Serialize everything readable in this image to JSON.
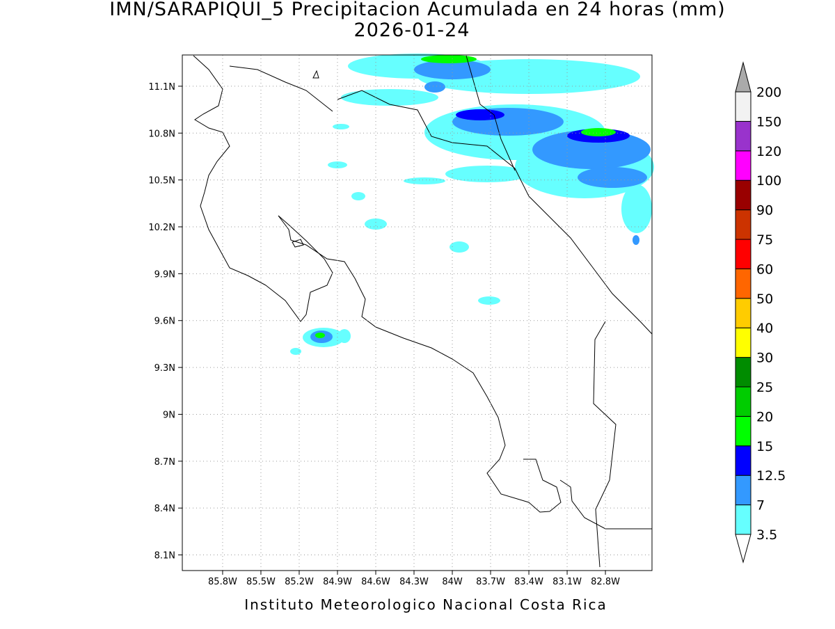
{
  "title": "IMN/SARAPIQUI_5 Precipitacion Acumulada en 24 horas (mm)",
  "subtitle": "2026-01-24",
  "footer": "Instituto Meteorologico Nacional Costa Rica",
  "map": {
    "xlim": [
      -86.116,
      -82.435
    ],
    "ylim": [
      8.0,
      11.3
    ],
    "xticks": [
      {
        "value": -85.8,
        "label": "85.8W"
      },
      {
        "value": -85.5,
        "label": "85.5W"
      },
      {
        "value": -85.2,
        "label": "85.2W"
      },
      {
        "value": -84.9,
        "label": "84.9W"
      },
      {
        "value": -84.6,
        "label": "84.6W"
      },
      {
        "value": -84.3,
        "label": "84.3W"
      },
      {
        "value": -84,
        "label": "84W"
      },
      {
        "value": -83.7,
        "label": "83.7W"
      },
      {
        "value": -83.4,
        "label": "83.4W"
      },
      {
        "value": -83.1,
        "label": "83.1W"
      },
      {
        "value": -82.8,
        "label": "82.8W"
      }
    ],
    "yticks": [
      {
        "value": 8.1,
        "label": "8.1N"
      },
      {
        "value": 8.4,
        "label": "8.4N"
      },
      {
        "value": 8.7,
        "label": "8.7N"
      },
      {
        "value": 9,
        "label": "9N"
      },
      {
        "value": 9.3,
        "label": "9.3N"
      },
      {
        "value": 9.6,
        "label": "9.6N"
      },
      {
        "value": 9.9,
        "label": "9.9N"
      },
      {
        "value": 10.2,
        "label": "10.2N"
      },
      {
        "value": 10.5,
        "label": "10.5N"
      },
      {
        "value": 10.8,
        "label": "10.8N"
      },
      {
        "value": 11.1,
        "label": "11.1N"
      }
    ],
    "grid": true
  },
  "colorbar": {
    "levels": [
      3.5,
      7,
      12.5,
      15,
      20,
      25,
      30,
      40,
      50,
      60,
      75,
      90,
      100,
      120,
      150,
      200
    ],
    "colors": [
      "#66ffff",
      "#3399ff",
      "#0000ff",
      "#00ff00",
      "#00cc00",
      "#008c00",
      "#ffff00",
      "#ffcc00",
      "#ff6600",
      "#ff0000",
      "#cc3300",
      "#990000",
      "#ff00ff",
      "#9933cc",
      "#f2f2f2"
    ],
    "under_color": "#ffffff",
    "over_color": "#aaaaaa"
  }
}
